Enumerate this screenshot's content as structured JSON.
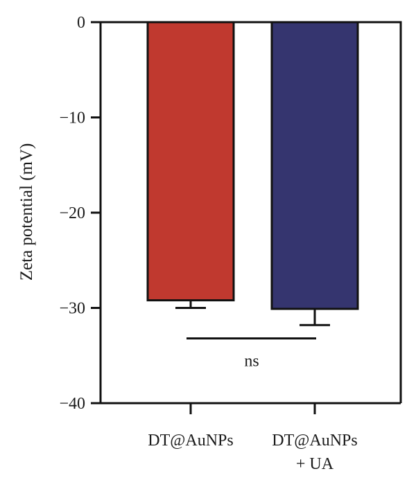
{
  "chart_data": {
    "type": "bar",
    "title": "",
    "xlabel": "",
    "ylabel": "Zeta potential (mV)",
    "ylim": [
      -40,
      0
    ],
    "yticks": [
      0,
      -10,
      -20,
      -30,
      -40
    ],
    "ytick_labels": [
      "0",
      "−10",
      "−20",
      "−30",
      "−40"
    ],
    "categories": [
      [
        "DT@AuNPs"
      ],
      [
        "DT@AuNPs",
        "+ UA"
      ]
    ],
    "values": [
      -29.2,
      -30.1
    ],
    "errors": [
      0.8,
      1.7
    ],
    "colors": [
      "#c0392f",
      "#35356f"
    ],
    "grid": false,
    "annotation": {
      "text": "ns",
      "y": -33.2,
      "between": [
        0,
        1
      ]
    }
  }
}
